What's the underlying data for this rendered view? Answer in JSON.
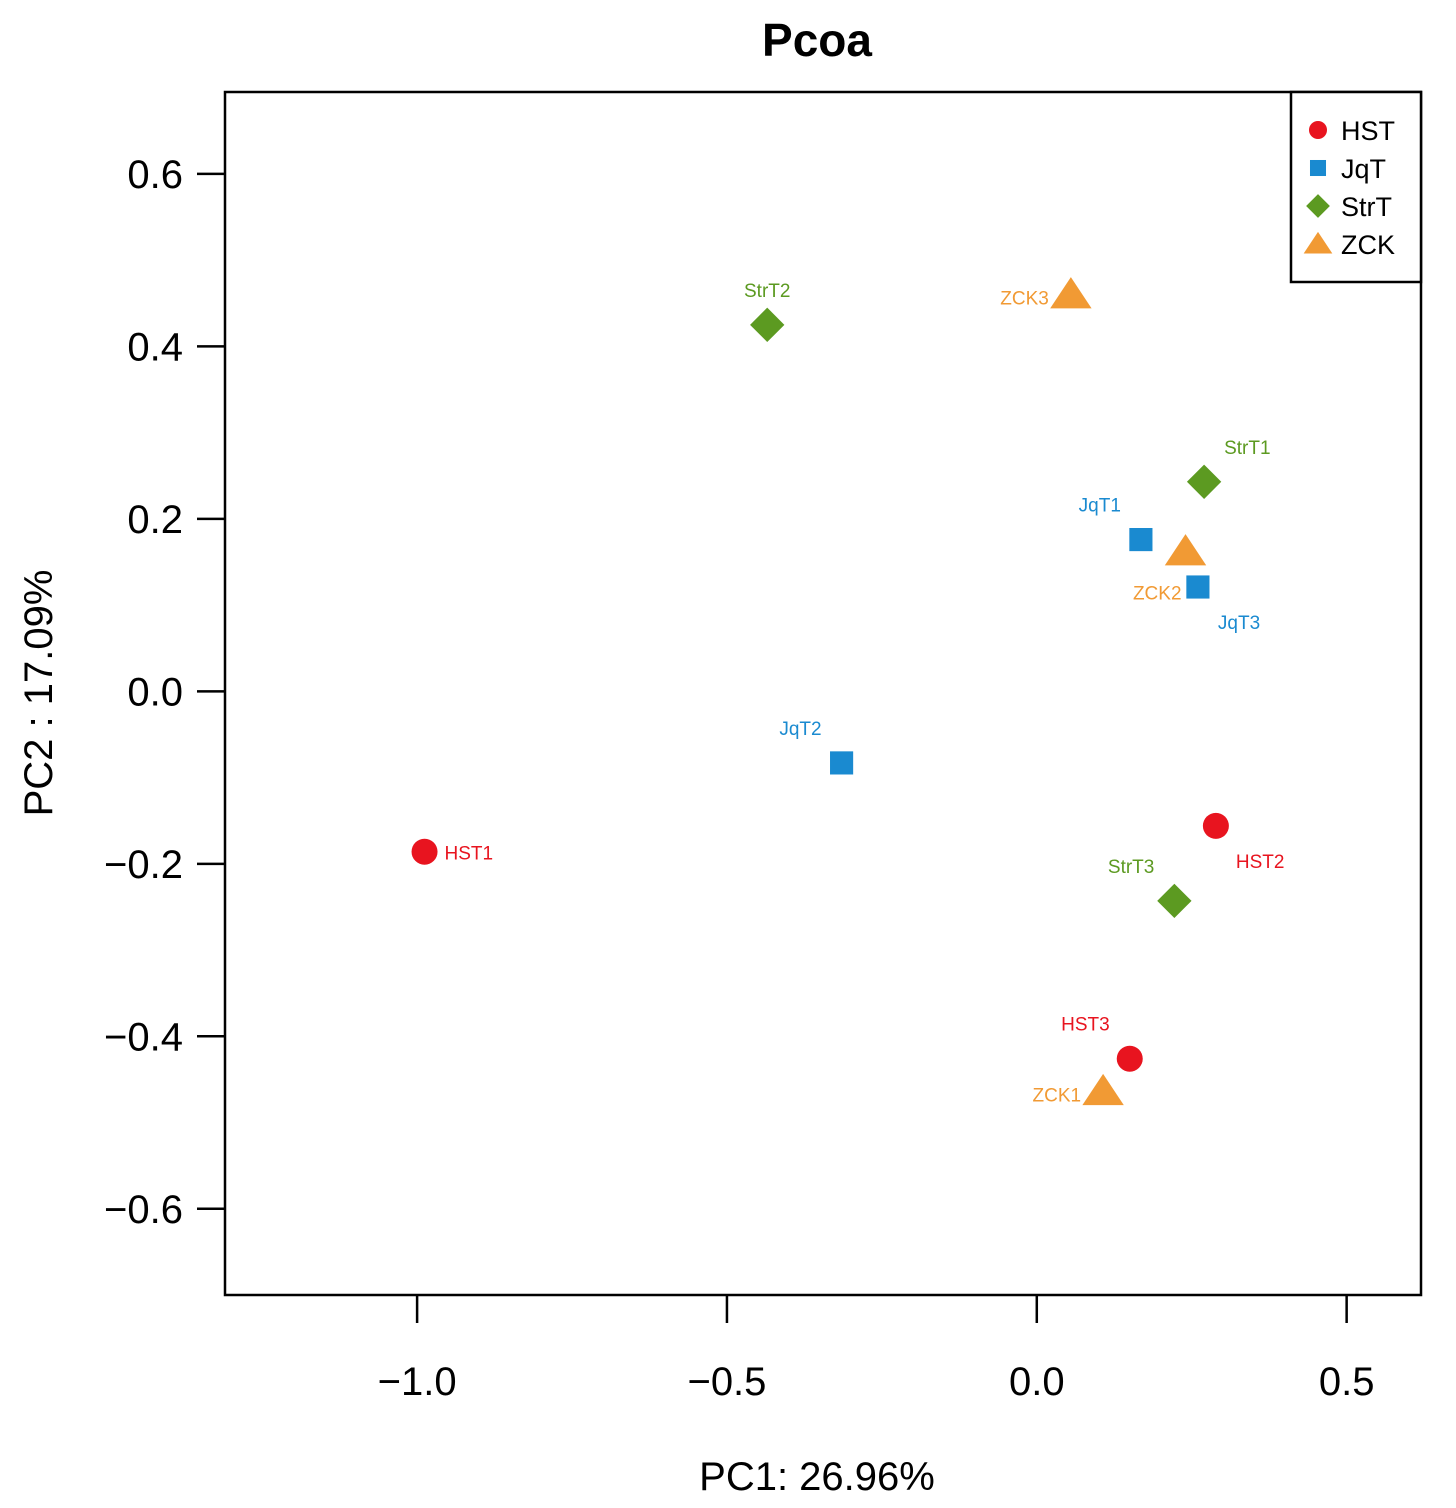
{
  "chart_data": {
    "type": "scatter",
    "title": "Pcoa",
    "xlabel": "PC1: 26.96%",
    "ylabel": "PC2 :  17.09%",
    "xlim": [
      -1.31,
      0.62
    ],
    "ylim": [
      -0.7,
      0.695
    ],
    "x_ticks": [
      -1.0,
      -0.5,
      0.0,
      0.5
    ],
    "x_tick_labels": [
      "−1.0",
      "−0.5",
      "0.0",
      "0.5"
    ],
    "y_ticks": [
      -0.6,
      -0.4,
      -0.2,
      0.0,
      0.2,
      0.4,
      0.6
    ],
    "y_tick_labels": [
      "−0.6",
      "−0.4",
      "−0.2",
      "0.0",
      "0.2",
      "0.4",
      "0.6"
    ],
    "grid": false,
    "legend_position": "top-right",
    "groups": [
      {
        "name": "HST",
        "color": "#E8141F",
        "shape": "circle"
      },
      {
        "name": "JqT",
        "color": "#1A8AD0",
        "shape": "square"
      },
      {
        "name": "StrT",
        "color": "#5C9A21",
        "shape": "diamond"
      },
      {
        "name": "ZCK",
        "color": "#F19A34",
        "shape": "triangle"
      }
    ],
    "points": [
      {
        "label": "HST1",
        "group": "HST",
        "x": -0.988,
        "y": -0.186,
        "label_side": "right"
      },
      {
        "label": "HST2",
        "group": "HST",
        "x": 0.289,
        "y": -0.156,
        "label_side": "below-right"
      },
      {
        "label": "HST3",
        "group": "HST",
        "x": 0.15,
        "y": -0.426,
        "label_side": "above-left"
      },
      {
        "label": "JqT1",
        "group": "JqT",
        "x": 0.168,
        "y": 0.176,
        "label_side": "above-left"
      },
      {
        "label": "JqT2",
        "group": "JqT",
        "x": -0.315,
        "y": -0.083,
        "label_side": "above-left"
      },
      {
        "label": "JqT3",
        "group": "JqT",
        "x": 0.26,
        "y": 0.121,
        "label_side": "below-right"
      },
      {
        "label": "StrT1",
        "group": "StrT",
        "x": 0.27,
        "y": 0.243,
        "label_side": "above-right"
      },
      {
        "label": "StrT2",
        "group": "StrT",
        "x": -0.435,
        "y": 0.425,
        "label_side": "above"
      },
      {
        "label": "StrT3",
        "group": "StrT",
        "x": 0.222,
        "y": -0.243,
        "label_side": "above-left"
      },
      {
        "label": "ZCK1",
        "group": "ZCK",
        "x": 0.107,
        "y": -0.464,
        "label_side": "left"
      },
      {
        "label": "ZCK2",
        "group": "ZCK",
        "x": 0.24,
        "y": 0.162,
        "label_side": "below-left"
      },
      {
        "label": "ZCK3",
        "group": "ZCK",
        "x": 0.055,
        "y": 0.46,
        "label_side": "left"
      }
    ]
  }
}
